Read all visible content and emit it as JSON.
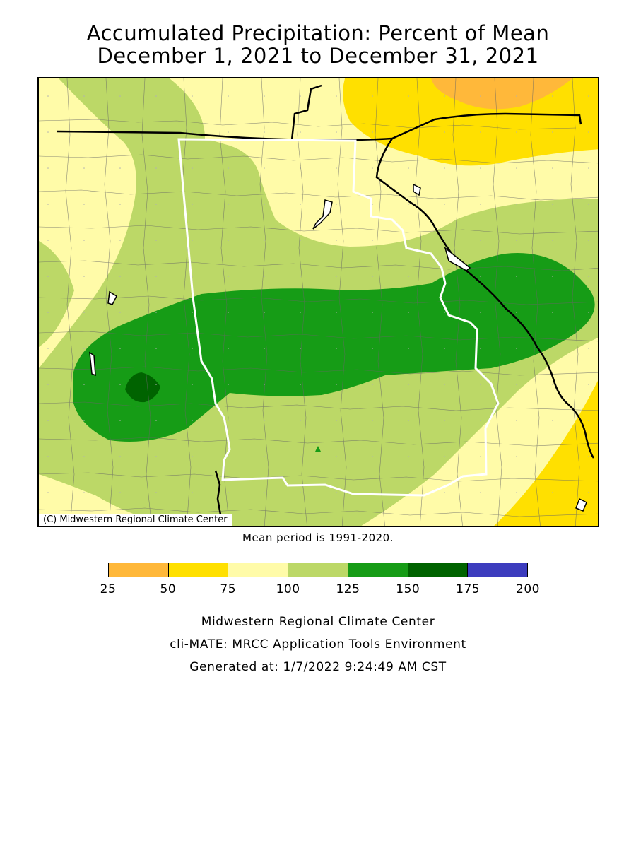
{
  "title_line1": "Accumulated Precipitation: Percent of Mean",
  "title_line2": "December 1, 2021 to December 31, 2021",
  "copyright": "(C) Midwestern Regional Climate Center",
  "mean_note": "Mean period is 1991-2020.",
  "legend": {
    "colors": [
      "#ffb83a",
      "#ffe000",
      "#fffba8",
      "#bcd867",
      "#169c16",
      "#006300",
      "#3c3cbe"
    ],
    "ticks": [
      "25",
      "50",
      "75",
      "100",
      "125",
      "150",
      "175",
      "200"
    ]
  },
  "footer": {
    "line1": "Midwestern Regional Climate Center",
    "line2": "cli-MATE: MRCC Application Tools Environment",
    "line3": "Generated at: 1/7/2022 9:24:49 AM CST"
  }
}
